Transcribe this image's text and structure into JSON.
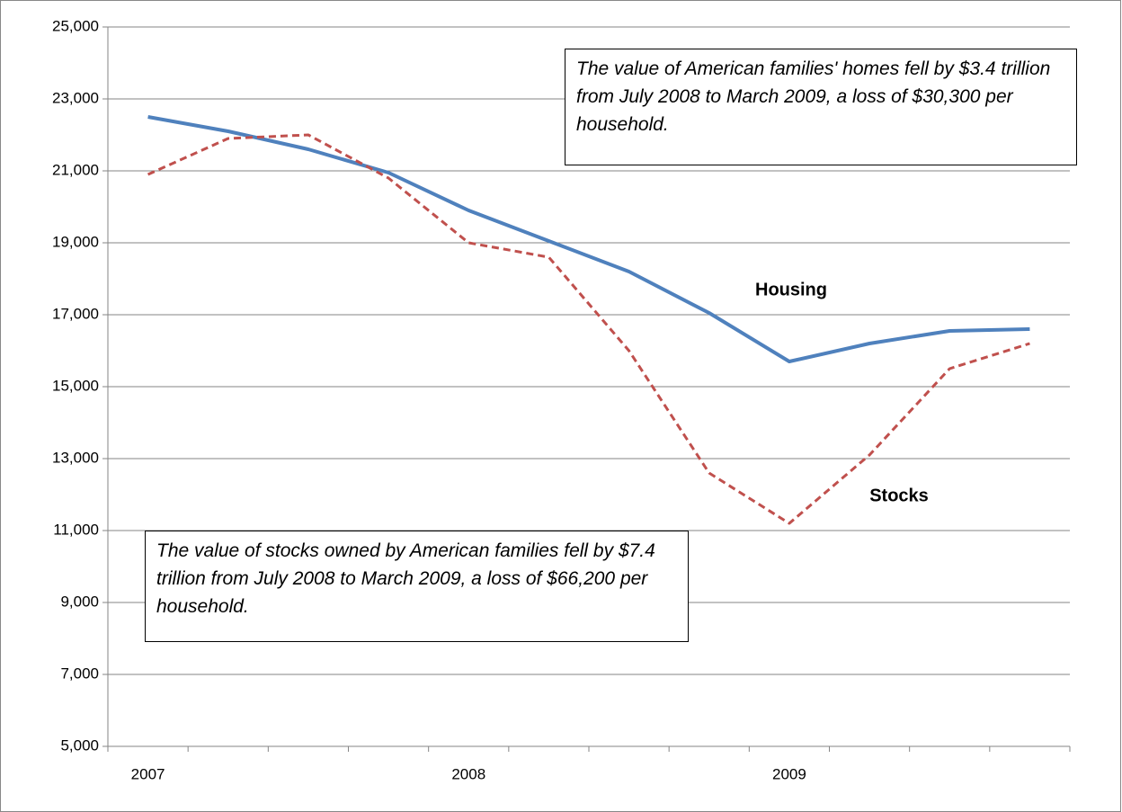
{
  "chart_data": {
    "type": "line",
    "categories": [
      "2007",
      null,
      null,
      null,
      "2008",
      null,
      null,
      null,
      "2009",
      null,
      null,
      null
    ],
    "series": [
      {
        "name": "Housing",
        "color": "#4f81bd",
        "dash": false,
        "values": [
          22500,
          22100,
          21600,
          20950,
          19900,
          19050,
          18200,
          17050,
          15700,
          16200,
          16550,
          16600
        ]
      },
      {
        "name": "Stocks",
        "color": "#c0504d",
        "dash": true,
        "values": [
          20900,
          21900,
          22000,
          20800,
          19000,
          18600,
          16000,
          12600,
          11200,
          13100,
          15500,
          16200
        ]
      }
    ],
    "ylim": [
      5000,
      25000
    ],
    "yticks": [
      {
        "value": 5000,
        "label": "5,000"
      },
      {
        "value": 7000,
        "label": "7,000"
      },
      {
        "value": 9000,
        "label": "9,000"
      },
      {
        "value": 11000,
        "label": "11,000"
      },
      {
        "value": 13000,
        "label": "13,000"
      },
      {
        "value": 15000,
        "label": "15,000"
      },
      {
        "value": 17000,
        "label": "17,000"
      },
      {
        "value": 19000,
        "label": "19,000"
      },
      {
        "value": 21000,
        "label": "21,000"
      },
      {
        "value": 23000,
        "label": "23,000"
      },
      {
        "value": 25000,
        "label": "25,000"
      }
    ],
    "grid": true,
    "annotations": [
      "The value of American families' homes fell by $3.4 trillion from July 2008 to March 2009, a loss of $30,300 per household.",
      "The value of stocks owned by American families fell by $7.4 trillion from July 2008 to March 2009, a loss of $66,200 per household."
    ]
  }
}
